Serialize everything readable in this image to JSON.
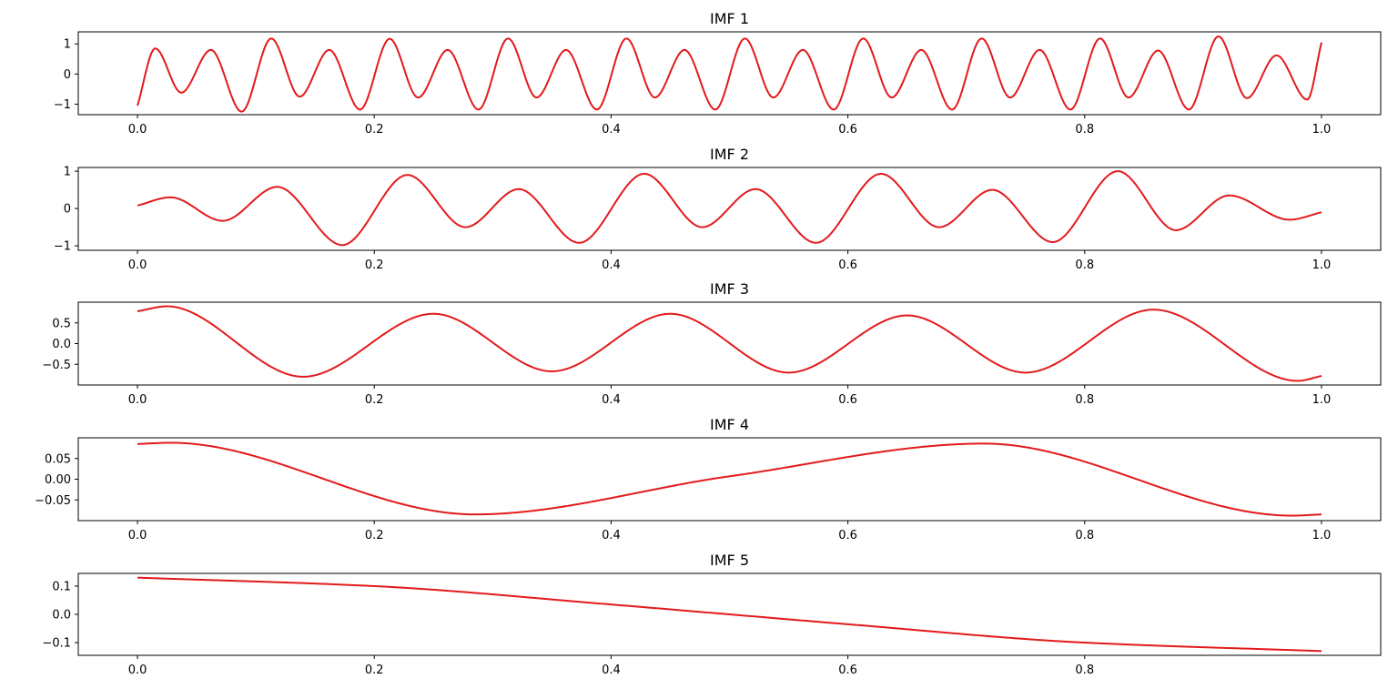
{
  "chart_data": [
    {
      "type": "line",
      "title": "IMF 1",
      "xlim": [
        -0.05,
        1.05
      ],
      "ylim": [
        -1.35,
        1.4
      ],
      "xticks": [
        0.0,
        0.2,
        0.4,
        0.6,
        0.8,
        1.0
      ],
      "xtick_labels": [
        "0.0",
        "0.2",
        "0.4",
        "0.6",
        "0.8",
        "1.0"
      ],
      "yticks": [
        1,
        0,
        -1
      ],
      "ytick_labels": [
        "1",
        "0",
        "−1"
      ],
      "color": "#e31a1c",
      "x_points": [
        0.0,
        0.015,
        0.037,
        0.062,
        0.088,
        0.113,
        0.137,
        0.162,
        0.188,
        0.213,
        0.237,
        0.262,
        0.288,
        0.313,
        0.337,
        0.362,
        0.388,
        0.413,
        0.437,
        0.462,
        0.488,
        0.513,
        0.537,
        0.562,
        0.588,
        0.613,
        0.637,
        0.662,
        0.688,
        0.713,
        0.737,
        0.762,
        0.788,
        0.813,
        0.837,
        0.862,
        0.888,
        0.913,
        0.937,
        0.962,
        0.988,
        1.0
      ],
      "y_points": [
        -1.05,
        0.85,
        -0.62,
        0.8,
        -1.25,
        1.18,
        -0.75,
        0.8,
        -1.18,
        1.17,
        -0.78,
        0.8,
        -1.18,
        1.18,
        -0.78,
        0.8,
        -1.18,
        1.18,
        -0.78,
        0.8,
        -1.18,
        1.18,
        -0.78,
        0.8,
        -1.18,
        1.18,
        -0.78,
        0.8,
        -1.18,
        1.18,
        -0.78,
        0.8,
        -1.18,
        1.18,
        -0.78,
        0.78,
        -1.18,
        1.25,
        -0.8,
        0.62,
        -0.85,
        1.05
      ]
    },
    {
      "type": "line",
      "title": "IMF 2",
      "xlim": [
        -0.05,
        1.05
      ],
      "ylim": [
        -1.12,
        1.1
      ],
      "xticks": [
        0.0,
        0.2,
        0.4,
        0.6,
        0.8,
        1.0
      ],
      "xtick_labels": [
        "0.0",
        "0.2",
        "0.4",
        "0.6",
        "0.8",
        "1.0"
      ],
      "yticks": [
        1,
        0,
        -1
      ],
      "ytick_labels": [
        "1",
        "0",
        "−1"
      ],
      "color": "#e31a1c",
      "x_points": [
        0.0,
        0.028,
        0.072,
        0.118,
        0.173,
        0.228,
        0.277,
        0.322,
        0.373,
        0.428,
        0.477,
        0.522,
        0.573,
        0.628,
        0.677,
        0.722,
        0.773,
        0.828,
        0.877,
        0.922,
        0.973,
        1.0
      ],
      "y_points": [
        0.08,
        0.3,
        -0.33,
        0.58,
        -0.98,
        0.9,
        -0.5,
        0.52,
        -0.92,
        0.93,
        -0.5,
        0.52,
        -0.92,
        0.93,
        -0.5,
        0.5,
        -0.9,
        1.0,
        -0.58,
        0.35,
        -0.3,
        -0.1
      ]
    },
    {
      "type": "line",
      "title": "IMF 3",
      "xlim": [
        -0.05,
        1.05
      ],
      "ylim": [
        -1.0,
        1.0
      ],
      "xticks": [
        0.0,
        0.2,
        0.4,
        0.6,
        0.8,
        1.0
      ],
      "xtick_labels": [
        "0.0",
        "0.2",
        "0.4",
        "0.6",
        "0.8",
        "1.0"
      ],
      "yticks": [
        0.5,
        0.0,
        -0.5
      ],
      "ytick_labels": [
        "0.5",
        "0.0",
        "−0.5"
      ],
      "color": "#e31a1c",
      "x_points": [
        0.0,
        0.025,
        0.14,
        0.25,
        0.35,
        0.45,
        0.55,
        0.65,
        0.75,
        0.858,
        0.98,
        1.0
      ],
      "y_points": [
        0.78,
        0.9,
        -0.8,
        0.72,
        -0.67,
        0.72,
        -0.7,
        0.68,
        -0.7,
        0.82,
        -0.9,
        -0.78
      ]
    },
    {
      "type": "line",
      "title": "IMF 4",
      "xlim": [
        -0.05,
        1.05
      ],
      "ylim": [
        -0.1,
        0.1
      ],
      "xticks": [
        0.0,
        0.2,
        0.4,
        0.6,
        0.8,
        1.0
      ],
      "xtick_labels": [
        "0.0",
        "0.2",
        "0.4",
        "0.6",
        "0.8",
        "1.0"
      ],
      "yticks": [
        0.05,
        0.0,
        -0.05
      ],
      "ytick_labels": [
        "0.05",
        "0.00",
        "−0.05"
      ],
      "color": "#e31a1c",
      "x_points": [
        0.0,
        0.028,
        0.285,
        0.5,
        0.715,
        0.975,
        1.0
      ],
      "y_points": [
        0.085,
        0.088,
        -0.085,
        0.007,
        0.086,
        -0.088,
        -0.085
      ]
    },
    {
      "type": "line",
      "title": "IMF 5",
      "xlim": [
        -0.05,
        1.05
      ],
      "ylim": [
        -0.145,
        0.145
      ],
      "xticks": [
        0.0,
        0.2,
        0.4,
        0.6,
        0.8
      ],
      "xtick_labels": [
        "0.0",
        "0.2",
        "0.4",
        "0.6",
        "0.8"
      ],
      "yticks": [
        0.1,
        0.0,
        -0.1
      ],
      "ytick_labels": [
        "0.1",
        "0.0",
        "−0.1"
      ],
      "color": "#e31a1c",
      "x_points": [
        0.0,
        0.2,
        0.4,
        0.5,
        0.6,
        0.8,
        1.0
      ],
      "y_points": [
        0.13,
        0.1,
        0.035,
        0.0,
        -0.035,
        -0.1,
        -0.13
      ]
    }
  ]
}
